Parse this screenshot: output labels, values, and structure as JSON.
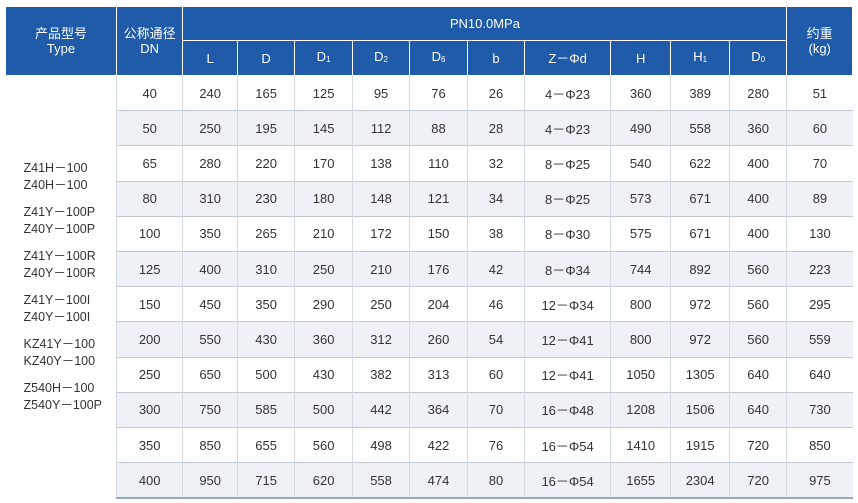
{
  "header": {
    "type_cn": "产品型号",
    "type_en": "Type",
    "dn_cn": "公称通径",
    "dn_en": "DN",
    "pressure": "PN10.0MPa",
    "weight_cn": "约重",
    "weight_unit": "(kg)",
    "columns": [
      {
        "base": "L",
        "sub": ""
      },
      {
        "base": "D",
        "sub": ""
      },
      {
        "base": "D",
        "sub": "1"
      },
      {
        "base": "D",
        "sub": "2"
      },
      {
        "base": "D",
        "sub": "6"
      },
      {
        "base": "b",
        "sub": ""
      },
      {
        "base": "Z－Φd",
        "sub": ""
      },
      {
        "base": "H",
        "sub": ""
      },
      {
        "base": "H",
        "sub": "1"
      },
      {
        "base": "D",
        "sub": "0"
      }
    ]
  },
  "types": [
    [
      "Z41H－100",
      "Z40H－100"
    ],
    [
      "Z41Y－100P",
      "Z40Y－100P"
    ],
    [
      "Z41Y－100R",
      "Z40Y－100R"
    ],
    [
      "Z41Y－100I",
      "Z40Y－100I"
    ],
    [
      "KZ41Y－100",
      "KZ40Y－100"
    ],
    [
      "Z540H－100",
      "Z540Y－100P"
    ]
  ],
  "rows": [
    [
      "40",
      "240",
      "165",
      "125",
      "95",
      "76",
      "26",
      "4－Φ23",
      "360",
      "389",
      "280",
      "51"
    ],
    [
      "50",
      "250",
      "195",
      "145",
      "112",
      "88",
      "28",
      "4－Φ23",
      "490",
      "558",
      "360",
      "60"
    ],
    [
      "65",
      "280",
      "220",
      "170",
      "138",
      "110",
      "32",
      "8－Φ25",
      "540",
      "622",
      "400",
      "70"
    ],
    [
      "80",
      "310",
      "230",
      "180",
      "148",
      "121",
      "34",
      "8－Φ25",
      "573",
      "671",
      "400",
      "89"
    ],
    [
      "100",
      "350",
      "265",
      "210",
      "172",
      "150",
      "38",
      "8－Φ30",
      "575",
      "671",
      "400",
      "130"
    ],
    [
      "125",
      "400",
      "310",
      "250",
      "210",
      "176",
      "42",
      "8－Φ34",
      "744",
      "892",
      "560",
      "223"
    ],
    [
      "150",
      "450",
      "350",
      "290",
      "250",
      "204",
      "46",
      "12－Φ34",
      "800",
      "972",
      "560",
      "295"
    ],
    [
      "200",
      "550",
      "430",
      "360",
      "312",
      "260",
      "54",
      "12－Φ41",
      "800",
      "972",
      "560",
      "559"
    ],
    [
      "250",
      "650",
      "500",
      "430",
      "382",
      "313",
      "60",
      "12－Φ41",
      "1050",
      "1305",
      "640",
      "640"
    ],
    [
      "300",
      "750",
      "585",
      "500",
      "442",
      "364",
      "70",
      "16－Φ48",
      "1208",
      "1506",
      "640",
      "730"
    ],
    [
      "350",
      "850",
      "655",
      "560",
      "498",
      "422",
      "76",
      "16－Φ54",
      "1410",
      "1915",
      "720",
      "850"
    ],
    [
      "400",
      "950",
      "715",
      "620",
      "558",
      "474",
      "80",
      "16－Φ54",
      "1655",
      "2304",
      "720",
      "975"
    ]
  ],
  "colors": {
    "header_bg": "#1f5ba8",
    "stripe_bg": "#eef1f6",
    "text": "#333333"
  }
}
